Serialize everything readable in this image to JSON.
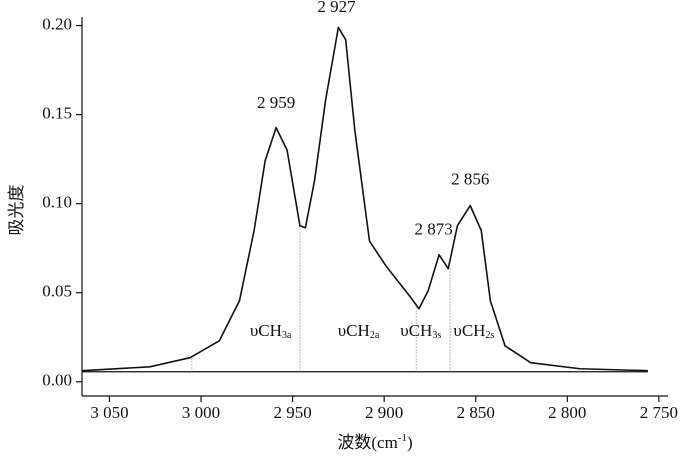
{
  "chart_data": {
    "type": "line",
    "ylabel": "吸光度",
    "xlabel": {
      "main": "波数(cm",
      "sup": "-1",
      "end": ")"
    },
    "xlim": [
      3065,
      2745
    ],
    "ylim": [
      -0.008,
      0.202
    ],
    "xticks": [
      {
        "value": 3050,
        "label": "3 050"
      },
      {
        "value": 3000,
        "label": "3 000"
      },
      {
        "value": 2950,
        "label": "2 950"
      },
      {
        "value": 2900,
        "label": "2 900"
      },
      {
        "value": 2850,
        "label": "2 850"
      },
      {
        "value": 2800,
        "label": "2 800"
      },
      {
        "value": 2750,
        "label": "2 750"
      }
    ],
    "yticks": [
      {
        "value": 0,
        "label": "0.00"
      },
      {
        "value": 0.05,
        "label": "0.05"
      },
      {
        "value": 0.1,
        "label": "0.10"
      },
      {
        "value": 0.15,
        "label": "0.15"
      },
      {
        "value": 0.2,
        "label": "0.20"
      }
    ],
    "x": [
      3064.8,
      3028,
      3006,
      2990,
      2979,
      2971,
      2965,
      2959,
      2953,
      2946,
      2943,
      2938,
      2932,
      2925,
      2921,
      2916,
      2908,
      2899,
      2886,
      2881,
      2876,
      2870,
      2865,
      2860,
      2853,
      2847,
      2842,
      2834,
      2820,
      2793,
      2756
    ],
    "series": [
      {
        "color": "#111111",
        "values": [
          0.0062,
          0.0084,
          0.0135,
          0.023,
          0.0455,
          0.085,
          0.124,
          0.1427,
          0.13,
          0.0876,
          0.0865,
          0.113,
          0.158,
          0.199,
          0.192,
          0.141,
          0.079,
          0.065,
          0.048,
          0.041,
          0.051,
          0.0713,
          0.0635,
          0.0876,
          0.0989,
          0.085,
          0.0455,
          0.0202,
          0.0107,
          0.0073,
          0.0062
        ]
      }
    ],
    "baseline": {
      "value": 0.0056,
      "from": 3065,
      "to": 2756
    },
    "vlines": [
      {
        "x": 3005,
        "y": 0.0138
      },
      {
        "x": 2946,
        "y": 0.0876
      },
      {
        "x": 2882.5,
        "y": 0.042
      },
      {
        "x": 2864,
        "y": 0.0635
      },
      {
        "x": 2794,
        "y": 0.0073
      }
    ],
    "annotations": [
      {
        "text": "2 959",
        "x": 2959,
        "y": 0.156
      },
      {
        "text": "2 927",
        "x": 2926,
        "y": 0.21
      },
      {
        "text": "2 873",
        "x": 2873,
        "y": 0.085
      },
      {
        "text": "2 856",
        "x": 2853,
        "y": 0.113
      },
      {
        "text": "υCH",
        "sub": "3a",
        "x": 2962,
        "y": 0.028
      },
      {
        "text": "υCH",
        "sub": "2a",
        "x": 2914,
        "y": 0.028
      },
      {
        "text": "υCH",
        "sub": "3s",
        "x": 2880,
        "y": 0.028
      },
      {
        "text": "υCH",
        "sub": "2s",
        "x": 2851,
        "y": 0.028
      }
    ]
  }
}
